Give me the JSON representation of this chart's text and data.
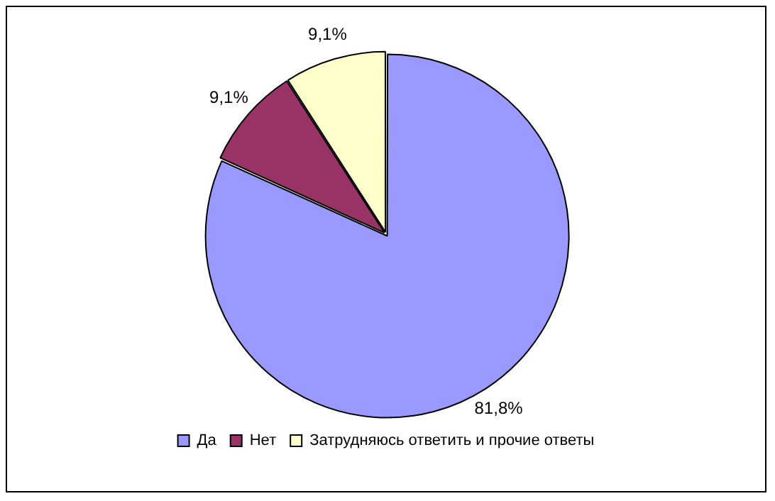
{
  "chart_data": {
    "type": "pie",
    "categories": [
      "Да",
      "Нет",
      "Затрудняюсь ответить и прочие ответы"
    ],
    "values": [
      81.8,
      9.1,
      9.1
    ],
    "colors": [
      "#9999ff",
      "#993366",
      "#ffffcc"
    ],
    "value_labels": [
      "81,8%",
      "9,1%",
      "9,1%"
    ],
    "legend": "bottom"
  }
}
